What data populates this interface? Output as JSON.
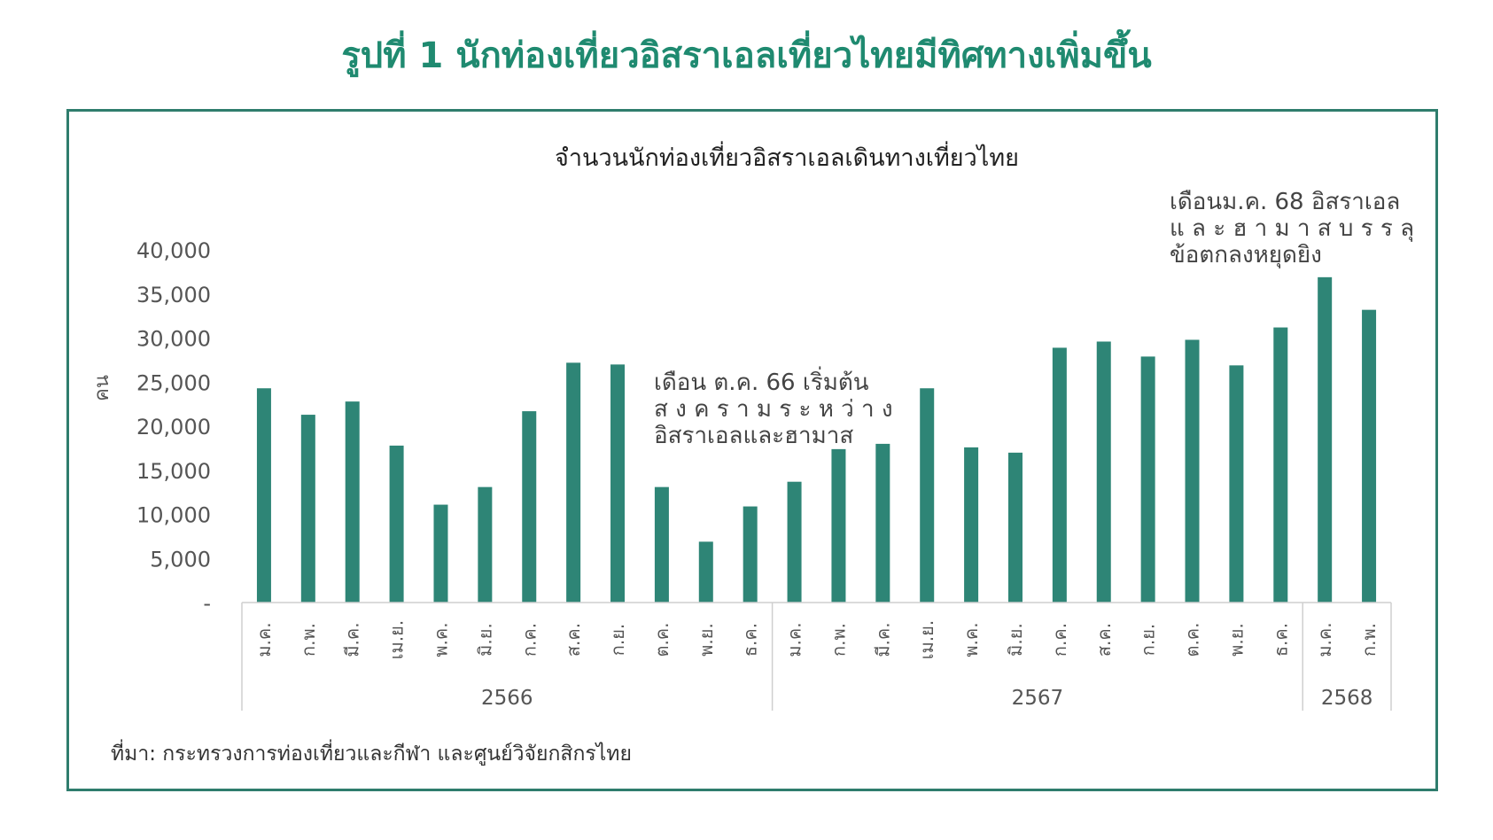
{
  "figure_title": "รูปที่ 1 นักท่องเที่ยวอิสราเอลเที่ยวไทยมีทิศทางเพิ่มขึ้น",
  "source": "ที่มา: กระทรวงการท่องเที่ยวและกีฬา และศูนย์วิจัยกสิกรไทย",
  "colors": {
    "bar": "#2e8576",
    "title": "#1f8a70",
    "frame": "#2f7d6d"
  },
  "chart_data": {
    "type": "bar",
    "title": "จำนวนนักท่องเที่ยวอิสราเอลเดินทางเที่ยวไทย",
    "ylabel": "คน",
    "ylim": [
      0,
      40000
    ],
    "yticks": [
      "-",
      "5,000",
      "10,000",
      "15,000",
      "20,000",
      "25,000",
      "30,000",
      "35,000",
      "40,000"
    ],
    "grid": false,
    "categories": [
      "ม.ค.",
      "ก.พ.",
      "มี.ค.",
      "เม.ย.",
      "พ.ค.",
      "มิ.ย.",
      "ก.ค.",
      "ส.ค.",
      "ก.ย.",
      "ต.ค.",
      "พ.ย.",
      "ธ.ค.",
      "ม.ค.",
      "ก.พ.",
      "มี.ค.",
      "เม.ย.",
      "พ.ค.",
      "มิ.ย.",
      "ก.ค.",
      "ส.ค.",
      "ก.ย.",
      "ต.ค.",
      "พ.ย.",
      "ธ.ค.",
      "ม.ค.",
      "ก.พ."
    ],
    "values": [
      24300,
      21300,
      22800,
      17800,
      11100,
      13100,
      21700,
      27200,
      27000,
      13100,
      6900,
      10900,
      13700,
      17400,
      18000,
      24300,
      17600,
      17000,
      28900,
      29600,
      27900,
      29800,
      26900,
      31200,
      36900,
      33200
    ],
    "groups": [
      {
        "label": "2566",
        "count": 12
      },
      {
        "label": "2567",
        "count": 12
      },
      {
        "label": "2568",
        "count": 2
      }
    ],
    "annotations": [
      {
        "lines": [
          "เดือน ต.ค. 66 เริ่มต้น",
          "ส ง ค ร า ม ร ะ ห ว่ า ง",
          "อิสราเอลและฮามาส"
        ]
      },
      {
        "lines": [
          "เดือนม.ค. 68 อิสราเอล",
          "แ ล ะ ฮ า ม า ส บ ร ร ลุ",
          "ข้อตกลงหยุดยิง"
        ]
      }
    ]
  }
}
